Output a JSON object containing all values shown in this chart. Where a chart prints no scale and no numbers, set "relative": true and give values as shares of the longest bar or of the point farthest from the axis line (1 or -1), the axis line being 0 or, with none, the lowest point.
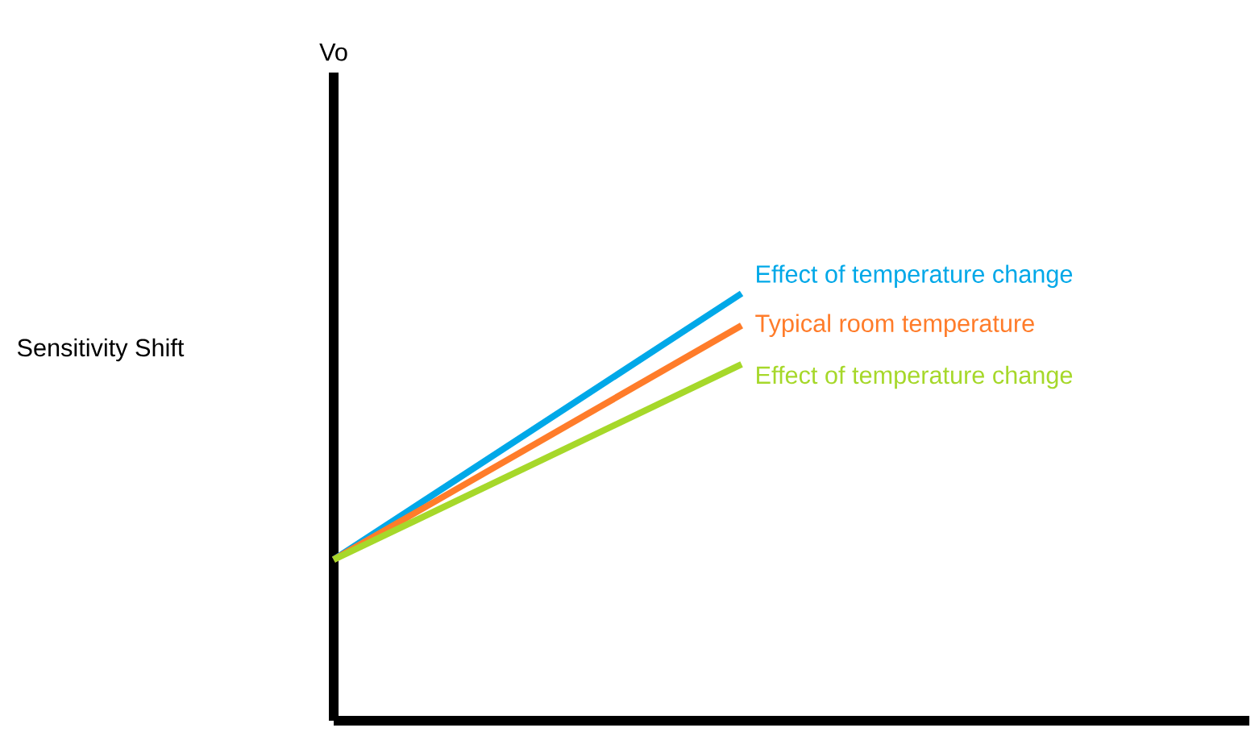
{
  "chart_data": {
    "type": "line",
    "relative": true,
    "categories": [
      null,
      null
    ],
    "series": [
      {
        "name": "Effect of temperature change",
        "color": "#00a8e8",
        "values": [
          0.377,
          1
        ]
      },
      {
        "name": "Typical room temperature",
        "color": "#ff7c2a",
        "values": [
          0.377,
          0.925
        ]
      },
      {
        "name": "Effect of temperature change",
        "color": "#a6d82a",
        "values": [
          0.377,
          0.834
        ]
      }
    ],
    "annotations": [
      "Vo",
      "Sensitivity Shift"
    ]
  }
}
